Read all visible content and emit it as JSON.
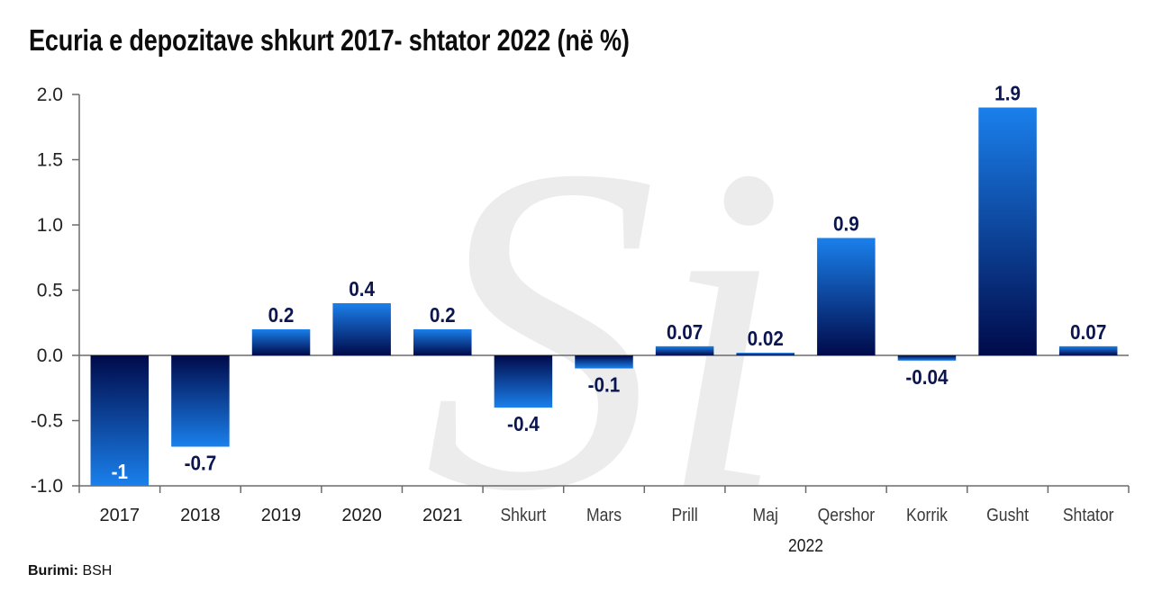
{
  "title": "Ecuria e depozitave shkurt 2017- shtator 2022 (në %)",
  "source": {
    "label": "Burimi:",
    "value": "BSH"
  },
  "watermark": {
    "text": "Si",
    "icon": "si-logo-watermark"
  },
  "colors": {
    "bar_bright": "#1a80ec",
    "bar_dark": "#000a4a",
    "label": "#0b1650",
    "axis": "#6b6b6b",
    "watermark": "#ececec"
  },
  "chart_data": {
    "type": "bar",
    "title": "Ecuria e depozitave shkurt 2017- shtator 2022 (në %)",
    "xlabel": "",
    "ylabel": "",
    "ylim": [
      -1.0,
      2.0
    ],
    "yticks": [
      2.0,
      1.5,
      1.0,
      0.5,
      0.0,
      -0.5,
      -1.0
    ],
    "ytick_labels": [
      "2.0",
      "1.5",
      "1.0",
      "0.5",
      "0.0",
      "-0.5",
      "-1.0"
    ],
    "categories": [
      "2017",
      "2018",
      "2019",
      "2020",
      "2021",
      "Shkurt",
      "Mars",
      "Prill",
      "Maj",
      "Qershor",
      "Korrik",
      "Gusht",
      "Shtator"
    ],
    "category_kinds": [
      "year",
      "year",
      "year",
      "year",
      "year",
      "month",
      "month",
      "month",
      "month",
      "month",
      "month",
      "month",
      "month"
    ],
    "group_labels": [
      {
        "label": "2022",
        "from": 5,
        "to": 12
      }
    ],
    "values": [
      -1,
      -0.7,
      0.2,
      0.4,
      0.2,
      -0.4,
      -0.1,
      0.07,
      0.02,
      0.9,
      -0.04,
      1.9,
      0.07
    ],
    "data_labels": [
      "-1",
      "-0.7",
      "0.2",
      "0.4",
      "0.2",
      "-0.4",
      "-0.1",
      "0.07",
      "0.02",
      "0.9",
      "-0.04",
      "1.9",
      "0.07"
    ],
    "grid": false,
    "legend": "none"
  }
}
